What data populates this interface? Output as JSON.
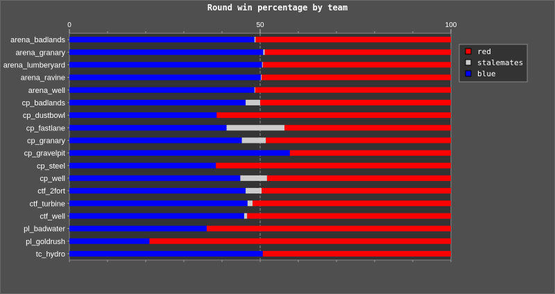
{
  "chart_data": {
    "type": "bar",
    "orientation": "horizontal",
    "stacked": true,
    "title": "Round win percentage by team",
    "xlim": [
      0,
      100
    ],
    "xticks": [
      "0",
      "50",
      "100"
    ],
    "categories": [
      "arena_badlands",
      "arena_granary",
      "arena_lumberyard",
      "arena_ravine",
      "arena_well",
      "cp_badlands",
      "cp_dustbowl",
      "cp_fastlane",
      "cp_granary",
      "cp_gravelpit",
      "cp_steel",
      "cp_well",
      "ctf_2fort",
      "ctf_turbine",
      "ctf_well",
      "pl_badwater",
      "pl_goldrush",
      "tc_hydro"
    ],
    "series": [
      {
        "name": "blue",
        "color": "#0000ff",
        "values": [
          48.5,
          50.8,
          50.5,
          50.2,
          48.5,
          46.2,
          38.6,
          41.2,
          45.2,
          57.8,
          38.4,
          44.8,
          46.2,
          46.7,
          45.8,
          36.0,
          21.0,
          50.7
        ]
      },
      {
        "name": "stalemates",
        "color": "#cccccc",
        "values": [
          0.3,
          0.4,
          0.2,
          0.2,
          0.2,
          3.8,
          0,
          15.2,
          6.3,
          0,
          0,
          7.0,
          4.2,
          1.3,
          0.8,
          0,
          0,
          0
        ]
      },
      {
        "name": "red",
        "color": "#ff0000",
        "values": [
          51.2,
          48.8,
          49.3,
          49.6,
          51.3,
          50.0,
          61.4,
          43.6,
          48.5,
          42.2,
          61.6,
          48.2,
          49.6,
          52.0,
          53.4,
          64.0,
          79.0,
          49.3
        ]
      }
    ],
    "legend": {
      "position": "top-right",
      "order": [
        "red",
        "stalemates",
        "blue"
      ]
    },
    "grid": true
  }
}
